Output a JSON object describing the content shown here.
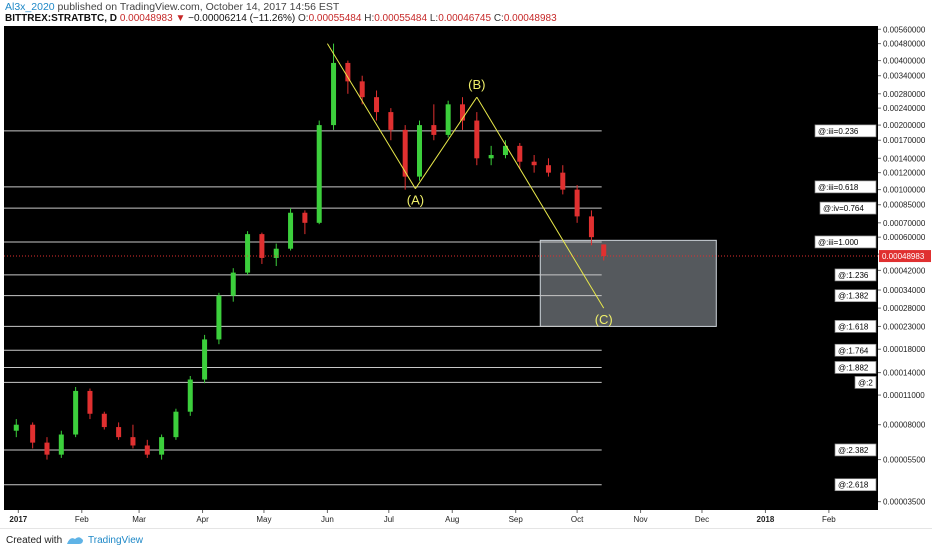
{
  "header": {
    "author": "Al3x_2020",
    "published_text": " published on TradingView.com, October 14, 2017 14:56 EST",
    "symbol": "BITTREX:STRATBTC, D",
    "last": "0.00048983",
    "arrow": "▼",
    "change": "−0.00006214 (−11.26%)",
    "o_label": "O:",
    "o_value": "0.00055484",
    "h_label": "H:",
    "h_value": "0.00055484",
    "l_label": "L:",
    "l_value": "0.00046745",
    "c_label": "C:",
    "c_value": "0.00048983"
  },
  "footer": {
    "created_with": "Created with",
    "brand": "TradingView"
  },
  "colors": {
    "background": "#000000",
    "up_candle": "#3ccf3c",
    "down_candle": "#e03030",
    "fib_line": "#c8c8c8",
    "wave_line": "#e8e84a",
    "wave_label": "#f0f06a",
    "price_line": "#e03030",
    "target_box": "#9aa2aa",
    "axis_text": "#dddddd",
    "grid": "#1a1a1a"
  },
  "chart_data": {
    "type": "candlestick",
    "title": "BITTREX:STRATBTC, D",
    "y_scale": "log",
    "ylim": [
      3.2e-05,
      0.0058
    ],
    "xlim": [
      "2016-12-25",
      "2018-02-25"
    ],
    "x_tick_labels": [
      {
        "date": "2017-01-01",
        "label": "2017"
      },
      {
        "date": "2017-02-01",
        "label": "Feb"
      },
      {
        "date": "2017-03-01",
        "label": "Mar"
      },
      {
        "date": "2017-04-01",
        "label": "Apr"
      },
      {
        "date": "2017-05-01",
        "label": "May"
      },
      {
        "date": "2017-06-01",
        "label": "Jun"
      },
      {
        "date": "2017-07-01",
        "label": "Jul"
      },
      {
        "date": "2017-08-01",
        "label": "Aug"
      },
      {
        "date": "2017-09-01",
        "label": "Sep"
      },
      {
        "date": "2017-10-01",
        "label": "Oct"
      },
      {
        "date": "2017-11-01",
        "label": "Nov"
      },
      {
        "date": "2017-12-01",
        "label": "Dec"
      },
      {
        "date": "2018-01-01",
        "label": "2018"
      },
      {
        "date": "2018-02-01",
        "label": "Feb"
      }
    ],
    "y_tick_labels": [
      {
        "value": 0.0056,
        "label": "0.00560000"
      },
      {
        "value": 0.0048,
        "label": "0.00480000"
      },
      {
        "value": 0.004,
        "label": "0.00400000"
      },
      {
        "value": 0.0034,
        "label": "0.00340000"
      },
      {
        "value": 0.0028,
        "label": "0.00280000"
      },
      {
        "value": 0.0024,
        "label": "0.00240000"
      },
      {
        "value": 0.002,
        "label": "0.00200000"
      },
      {
        "value": 0.0017,
        "label": "0.00170000"
      },
      {
        "value": 0.0014,
        "label": "0.00140000"
      },
      {
        "value": 0.0012,
        "label": "0.00120000"
      },
      {
        "value": 0.001,
        "label": "0.00100000"
      },
      {
        "value": 0.00085,
        "label": "0.00085000"
      },
      {
        "value": 0.0007,
        "label": "0.00070000"
      },
      {
        "value": 0.0006,
        "label": "0.00060000"
      },
      {
        "value": 0.0005,
        "label": "0.00050000"
      },
      {
        "value": 0.00042,
        "label": "0.00042000"
      },
      {
        "value": 0.00034,
        "label": "0.00034000"
      },
      {
        "value": 0.00028,
        "label": "0.00028000"
      },
      {
        "value": 0.00023,
        "label": "0.00023000"
      },
      {
        "value": 0.00018,
        "label": "0.00018000"
      },
      {
        "value": 0.00014,
        "label": "0.00014000"
      },
      {
        "value": 0.00011,
        "label": "0.00011000"
      },
      {
        "value": 8e-05,
        "label": "0.00008000"
      },
      {
        "value": 5.5e-05,
        "label": "0.00005500"
      },
      {
        "value": 3.5e-05,
        "label": "0.00003500"
      }
    ],
    "current_price": {
      "value": 0.00048983,
      "label": "0.00048983"
    },
    "fib_levels": [
      {
        "label": "@:iii=0.236",
        "value": 0.00188
      },
      {
        "label": "@:iii=0.618",
        "value": 0.00103
      },
      {
        "label": "@:iv=0.764",
        "value": 0.00082
      },
      {
        "label": "@:iii=1.000",
        "value": 0.00057
      },
      {
        "label": "@:1.236",
        "value": 0.0004
      },
      {
        "label": "@:1.382",
        "value": 0.00032
      },
      {
        "label": "@:1.618",
        "value": 0.00023
      },
      {
        "label": "@:1.764",
        "value": 0.000178
      },
      {
        "label": "@:1.882",
        "value": 0.000148
      },
      {
        "label": "@:2",
        "value": 0.000126
      },
      {
        "label": "@:2.382",
        "value": 6.1e-05
      },
      {
        "label": "@:2.618",
        "value": 4.2e-05
      }
    ],
    "wave": [
      {
        "date": "2017-06-01",
        "value": 0.0048,
        "label": ""
      },
      {
        "date": "2017-07-14",
        "value": 0.00101,
        "label": "(A)"
      },
      {
        "date": "2017-08-13",
        "value": 0.0027,
        "label": "(B)"
      },
      {
        "date": "2017-10-14",
        "value": 0.00028,
        "label": "(C)"
      }
    ],
    "target_zone": {
      "from": "2017-09-13",
      "to": "2017-12-08",
      "high": 0.00058,
      "low": 0.00023
    },
    "ohlc": [
      {
        "date": "2016-12-31",
        "o": 7.5e-05,
        "h": 8.5e-05,
        "l": 7e-05,
        "c": 8e-05
      },
      {
        "date": "2017-01-08",
        "o": 8e-05,
        "h": 8.2e-05,
        "l": 6.2e-05,
        "c": 6.6e-05
      },
      {
        "date": "2017-01-15",
        "o": 6.6e-05,
        "h": 7e-05,
        "l": 5.5e-05,
        "c": 5.8e-05
      },
      {
        "date": "2017-01-22",
        "o": 5.8e-05,
        "h": 7.5e-05,
        "l": 5.6e-05,
        "c": 7.2e-05
      },
      {
        "date": "2017-01-29",
        "o": 7.2e-05,
        "h": 0.00012,
        "l": 7e-05,
        "c": 0.000115
      },
      {
        "date": "2017-02-05",
        "o": 0.000115,
        "h": 0.000118,
        "l": 8.5e-05,
        "c": 9e-05
      },
      {
        "date": "2017-02-12",
        "o": 9e-05,
        "h": 9.2e-05,
        "l": 7.6e-05,
        "c": 7.8e-05
      },
      {
        "date": "2017-02-19",
        "o": 7.8e-05,
        "h": 8.2e-05,
        "l": 6.8e-05,
        "c": 7e-05
      },
      {
        "date": "2017-02-26",
        "o": 7e-05,
        "h": 8e-05,
        "l": 6.2e-05,
        "c": 6.4e-05
      },
      {
        "date": "2017-03-05",
        "o": 6.4e-05,
        "h": 6.8e-05,
        "l": 5.6e-05,
        "c": 5.8e-05
      },
      {
        "date": "2017-03-12",
        "o": 5.8e-05,
        "h": 7.2e-05,
        "l": 5.5e-05,
        "c": 7e-05
      },
      {
        "date": "2017-03-19",
        "o": 7e-05,
        "h": 9.5e-05,
        "l": 6.8e-05,
        "c": 9.2e-05
      },
      {
        "date": "2017-03-26",
        "o": 9.2e-05,
        "h": 0.000135,
        "l": 8.8e-05,
        "c": 0.00013
      },
      {
        "date": "2017-04-02",
        "o": 0.00013,
        "h": 0.00021,
        "l": 0.000125,
        "c": 0.0002
      },
      {
        "date": "2017-04-09",
        "o": 0.0002,
        "h": 0.00033,
        "l": 0.00019,
        "c": 0.00032
      },
      {
        "date": "2017-04-16",
        "o": 0.00032,
        "h": 0.00043,
        "l": 0.0003,
        "c": 0.00041
      },
      {
        "date": "2017-04-23",
        "o": 0.00041,
        "h": 0.00064,
        "l": 0.0004,
        "c": 0.00062
      },
      {
        "date": "2017-04-30",
        "o": 0.00062,
        "h": 0.00063,
        "l": 0.00045,
        "c": 0.00048
      },
      {
        "date": "2017-05-07",
        "o": 0.00048,
        "h": 0.00056,
        "l": 0.00044,
        "c": 0.00053
      },
      {
        "date": "2017-05-14",
        "o": 0.00053,
        "h": 0.00082,
        "l": 0.00052,
        "c": 0.00078
      },
      {
        "date": "2017-05-21",
        "o": 0.00078,
        "h": 0.0008,
        "l": 0.00062,
        "c": 0.0007
      },
      {
        "date": "2017-05-28",
        "o": 0.0007,
        "h": 0.0021,
        "l": 0.00069,
        "c": 0.002
      },
      {
        "date": "2017-06-04",
        "o": 0.002,
        "h": 0.0048,
        "l": 0.0019,
        "c": 0.0039
      },
      {
        "date": "2017-06-11",
        "o": 0.0039,
        "h": 0.004,
        "l": 0.0028,
        "c": 0.0032
      },
      {
        "date": "2017-06-18",
        "o": 0.0032,
        "h": 0.0034,
        "l": 0.0025,
        "c": 0.0027
      },
      {
        "date": "2017-06-25",
        "o": 0.0027,
        "h": 0.0029,
        "l": 0.0021,
        "c": 0.0023
      },
      {
        "date": "2017-07-02",
        "o": 0.0023,
        "h": 0.0024,
        "l": 0.0017,
        "c": 0.0019
      },
      {
        "date": "2017-07-09",
        "o": 0.0019,
        "h": 0.002,
        "l": 0.001,
        "c": 0.00115
      },
      {
        "date": "2017-07-16",
        "o": 0.00115,
        "h": 0.0021,
        "l": 0.0011,
        "c": 0.002
      },
      {
        "date": "2017-07-23",
        "o": 0.002,
        "h": 0.0025,
        "l": 0.0017,
        "c": 0.0018
      },
      {
        "date": "2017-07-30",
        "o": 0.0018,
        "h": 0.0026,
        "l": 0.00175,
        "c": 0.0025
      },
      {
        "date": "2017-08-06",
        "o": 0.0025,
        "h": 0.0027,
        "l": 0.0019,
        "c": 0.0021
      },
      {
        "date": "2017-08-13",
        "o": 0.0021,
        "h": 0.0023,
        "l": 0.0013,
        "c": 0.0014
      },
      {
        "date": "2017-08-20",
        "o": 0.0014,
        "h": 0.0016,
        "l": 0.0013,
        "c": 0.00145
      },
      {
        "date": "2017-08-27",
        "o": 0.00145,
        "h": 0.0017,
        "l": 0.0014,
        "c": 0.0016
      },
      {
        "date": "2017-09-03",
        "o": 0.0016,
        "h": 0.00165,
        "l": 0.00125,
        "c": 0.00135
      },
      {
        "date": "2017-09-10",
        "o": 0.00135,
        "h": 0.00145,
        "l": 0.0012,
        "c": 0.0013
      },
      {
        "date": "2017-09-17",
        "o": 0.0013,
        "h": 0.0014,
        "l": 0.00115,
        "c": 0.0012
      },
      {
        "date": "2017-09-24",
        "o": 0.0012,
        "h": 0.0013,
        "l": 0.00095,
        "c": 0.001
      },
      {
        "date": "2017-10-01",
        "o": 0.001,
        "h": 0.00105,
        "l": 0.0007,
        "c": 0.00075
      },
      {
        "date": "2017-10-08",
        "o": 0.00075,
        "h": 0.0008,
        "l": 0.00055,
        "c": 0.0006
      },
      {
        "date": "2017-10-14",
        "o": 0.000555,
        "h": 0.000555,
        "l": 0.000467,
        "c": 0.00049
      }
    ]
  }
}
